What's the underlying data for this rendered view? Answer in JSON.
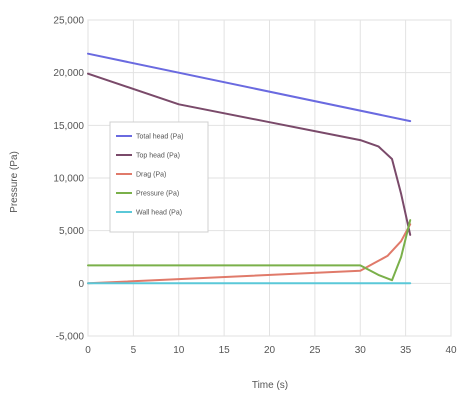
{
  "chart_data": {
    "type": "line",
    "title": "",
    "xlabel": "Time (s)",
    "ylabel": "Pressure (Pa)",
    "xlim": [
      0,
      40
    ],
    "ylim": [
      -5000,
      25000
    ],
    "xticks": [
      0,
      5,
      10,
      15,
      20,
      25,
      30,
      35,
      40
    ],
    "yticks": [
      -5000,
      0,
      5000,
      10000,
      15000,
      20000,
      25000
    ],
    "xtick_labels": [
      "0",
      "5",
      "10",
      "15",
      "20",
      "25",
      "30",
      "35",
      "40"
    ],
    "ytick_labels": [
      "-5,000",
      "0",
      "5,000",
      "10,000",
      "15,000",
      "20,000",
      "25,000"
    ],
    "grid": true,
    "legend_position": "center-left",
    "series": [
      {
        "name": "Total head (Pa)",
        "color": "#6a6ae0",
        "x": [
          0,
          35.5
        ],
        "y": [
          21800,
          15400
        ]
      },
      {
        "name": "Top head (Pa)",
        "color": "#7a4a6a",
        "x": [
          0,
          10,
          20,
          30,
          32,
          33.5,
          34.5,
          35.5
        ],
        "y": [
          19900,
          17000,
          15300,
          13600,
          13000,
          11800,
          8500,
          4600
        ]
      },
      {
        "name": "Drag (Pa)",
        "color": "#e07a6a",
        "x": [
          0,
          30,
          31.5,
          33,
          34.5,
          35.5
        ],
        "y": [
          0,
          1200,
          1900,
          2600,
          4000,
          5600
        ]
      },
      {
        "name": "Pressure (Pa)",
        "color": "#7ab04a",
        "x": [
          0,
          30,
          32,
          33.5,
          34.5,
          35.5
        ],
        "y": [
          1700,
          1700,
          800,
          300,
          2500,
          6000
        ]
      },
      {
        "name": "Wall head (Pa)",
        "color": "#5ac8d8",
        "x": [
          0,
          35.5
        ],
        "y": [
          0,
          0
        ]
      }
    ]
  }
}
